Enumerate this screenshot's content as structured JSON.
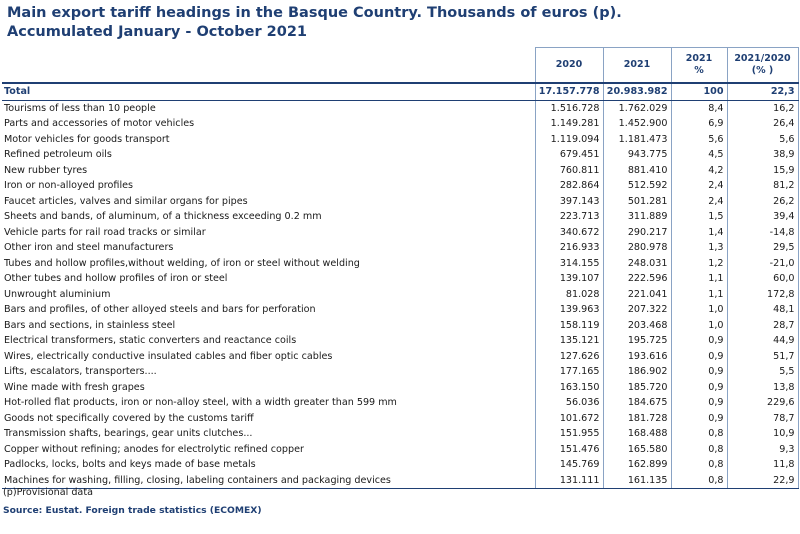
{
  "title": {
    "line1": "Main export tariff headings in the Basque Country. Thousands of euros (p).",
    "line2": "Accumulated January - October 2021"
  },
  "headers": {
    "col2020": "2020",
    "col2021": "2021",
    "pct_line1": "2021",
    "pct_line2": "%",
    "chg_line1": "2021/2020",
    "chg_line2": "(% )"
  },
  "total": {
    "label": "Total",
    "v2020": "17.157.778",
    "v2021": "20.983.982",
    "pct": "100",
    "chg": "22,3"
  },
  "rows": [
    {
      "label": "Tourisms of less than 10 people",
      "v2020": "1.516.728",
      "v2021": "1.762.029",
      "pct": "8,4",
      "chg": "16,2"
    },
    {
      "label": "Parts and accessories of motor vehicles",
      "v2020": "1.149.281",
      "v2021": "1.452.900",
      "pct": "6,9",
      "chg": "26,4"
    },
    {
      "label": "Motor vehicles for goods transport",
      "v2020": "1.119.094",
      "v2021": "1.181.473",
      "pct": "5,6",
      "chg": "5,6"
    },
    {
      "label": "Refined petroleum oils",
      "v2020": "679.451",
      "v2021": "943.775",
      "pct": "4,5",
      "chg": "38,9"
    },
    {
      "label": "New rubber tyres",
      "v2020": "760.811",
      "v2021": "881.410",
      "pct": "4,2",
      "chg": "15,9"
    },
    {
      "label": "Iron or non-alloyed profiles",
      "v2020": "282.864",
      "v2021": "512.592",
      "pct": "2,4",
      "chg": "81,2"
    },
    {
      "label": "Faucet articles, valves and similar organs for pipes",
      "v2020": "397.143",
      "v2021": "501.281",
      "pct": "2,4",
      "chg": "26,2"
    },
    {
      "label": "Sheets and bands, of aluminum, of a thickness exceeding 0.2 mm",
      "v2020": "223.713",
      "v2021": "311.889",
      "pct": "1,5",
      "chg": "39,4"
    },
    {
      "label": "Vehicle parts for rail road tracks or similar",
      "v2020": "340.672",
      "v2021": "290.217",
      "pct": "1,4",
      "chg": "-14,8"
    },
    {
      "label": "Other iron and steel manufacturers",
      "v2020": "216.933",
      "v2021": "280.978",
      "pct": "1,3",
      "chg": "29,5"
    },
    {
      "label": "Tubes and hollow profiles,without welding, of iron or steel without welding",
      "v2020": "314.155",
      "v2021": "248.031",
      "pct": "1,2",
      "chg": "-21,0"
    },
    {
      "label": "Other tubes and hollow profiles of iron or steel",
      "v2020": "139.107",
      "v2021": "222.596",
      "pct": "1,1",
      "chg": "60,0"
    },
    {
      "label": "Unwrought aluminium",
      "v2020": "81.028",
      "v2021": "221.041",
      "pct": "1,1",
      "chg": "172,8"
    },
    {
      "label": "Bars and profiles, of other alloyed steels and bars for perforation",
      "v2020": "139.963",
      "v2021": "207.322",
      "pct": "1,0",
      "chg": "48,1"
    },
    {
      "label": "Bars and sections, in stainless steel",
      "v2020": "158.119",
      "v2021": "203.468",
      "pct": "1,0",
      "chg": "28,7"
    },
    {
      "label": "Electrical transformers, static converters and reactance coils",
      "v2020": "135.121",
      "v2021": "195.725",
      "pct": "0,9",
      "chg": "44,9"
    },
    {
      "label": "Wires, electrically conductive insulated cables and fiber optic cables",
      "v2020": "127.626",
      "v2021": "193.616",
      "pct": "0,9",
      "chg": "51,7"
    },
    {
      "label": "Lifts, escalators, transporters....",
      "v2020": "177.165",
      "v2021": "186.902",
      "pct": "0,9",
      "chg": "5,5"
    },
    {
      "label": "Wine made with fresh grapes",
      "v2020": "163.150",
      "v2021": "185.720",
      "pct": "0,9",
      "chg": "13,8"
    },
    {
      "label": "Hot-rolled flat products, iron or non-alloy steel, with a width greater than 599 mm",
      "v2020": "56.036",
      "v2021": "184.675",
      "pct": "0,9",
      "chg": "229,6"
    },
    {
      "label": "Goods not specifically covered by the customs tariff",
      "v2020": "101.672",
      "v2021": "181.728",
      "pct": "0,9",
      "chg": "78,7"
    },
    {
      "label": "Transmission shafts, bearings, gear units clutches...",
      "v2020": "151.955",
      "v2021": "168.488",
      "pct": "0,8",
      "chg": "10,9"
    },
    {
      "label": "Copper without refining; anodes for electrolytic refined copper",
      "v2020": "151.476",
      "v2021": "165.580",
      "pct": "0,8",
      "chg": "9,3"
    },
    {
      "label": "Padlocks, locks, bolts and keys made of base metals",
      "v2020": "145.769",
      "v2021": "162.899",
      "pct": "0,8",
      "chg": "11,8"
    },
    {
      "label": "Machines for washing, filling, closing, labeling containers and packaging devices",
      "v2020": "131.111",
      "v2021": "161.135",
      "pct": "0,8",
      "chg": "22,9"
    }
  ],
  "note": "(p)Provisional data",
  "source": "Source: Eustat. Foreign trade statistics (ECOMEX)"
}
